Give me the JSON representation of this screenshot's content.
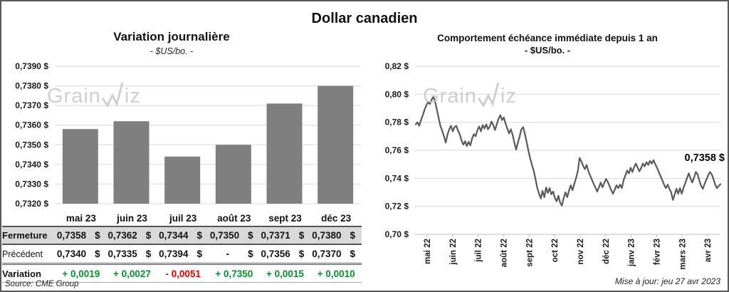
{
  "page": {
    "title": "Dollar canadien",
    "source": "Source: CME Group",
    "updated": "Mise à jour: jeu 27 avr 2023"
  },
  "watermark": {
    "part1": "Grain",
    "part2": "iz"
  },
  "colors": {
    "bar": "#7f7f7f",
    "line": "#595959",
    "grid": "#d9d9d9",
    "axis": "#bfbfbf",
    "text": "#1a1a1a",
    "positive": "#0a8f2d",
    "negative": "#e60000",
    "table_header_bg": "#d9d9d9"
  },
  "chart_data": [
    {
      "type": "bar",
      "title": "Variation  journalière",
      "subtitle": "- $US/bo. -",
      "categories": [
        "mai 23",
        "juin 23",
        "juil 23",
        "août 23",
        "sept 23",
        "déc 23"
      ],
      "values": [
        0.7358,
        0.7362,
        0.7344,
        0.735,
        0.7371,
        0.738
      ],
      "ylim": [
        0.732,
        0.739
      ],
      "ytick_step": 0.001,
      "ytick_labels": [
        "0,7390 $",
        "0,7380 $",
        "0,7370 $",
        "0,7360 $",
        "0,7350 $",
        "0,7340 $",
        "0,7330 $",
        "0,7320 $"
      ],
      "grid": true,
      "xlabel": "",
      "ylabel": ""
    },
    {
      "type": "line",
      "title": "Comportement échéance immédiate depuis 1 an",
      "subtitle": "- $US/bo. -",
      "x_tick_labels": [
        "mai 22",
        "juin 22",
        "juil 22",
        "août 22",
        "sept 22",
        "oct 22",
        "nov 22",
        "déc 22",
        "janv 23",
        "févr 23",
        "mars 23",
        "avr 23"
      ],
      "ylim": [
        0.7,
        0.82
      ],
      "ytick_step": 0.02,
      "ytick_labels": [
        "0,82 $",
        "0,80 $",
        "0,78 $",
        "0,76 $",
        "0,74 $",
        "0,72 $",
        "0,70 $"
      ],
      "grid": true,
      "annotation": "0,7358 $",
      "last_value": 0.7358,
      "values": [
        0.7785,
        0.78,
        0.7775,
        0.7815,
        0.785,
        0.789,
        0.792,
        0.7945,
        0.793,
        0.796,
        0.7985,
        0.7945,
        0.789,
        0.783,
        0.7775,
        0.774,
        0.77,
        0.7655,
        0.771,
        0.775,
        0.7775,
        0.7735,
        0.7765,
        0.7775,
        0.774,
        0.7715,
        0.767,
        0.764,
        0.7665,
        0.763,
        0.766,
        0.7635,
        0.7685,
        0.7715,
        0.77,
        0.7745,
        0.777,
        0.7735,
        0.778,
        0.7755,
        0.7785,
        0.775,
        0.777,
        0.7805,
        0.778,
        0.7745,
        0.7785,
        0.7825,
        0.785,
        0.7815,
        0.7835,
        0.779,
        0.7755,
        0.772,
        0.775,
        0.771,
        0.7655,
        0.7605,
        0.7655,
        0.77,
        0.775,
        0.7765,
        0.7715,
        0.7655,
        0.7595,
        0.754,
        0.7495,
        0.745,
        0.7395,
        0.733,
        0.729,
        0.7255,
        0.731,
        0.7265,
        0.7335,
        0.7295,
        0.733,
        0.7285,
        0.7305,
        0.726,
        0.7235,
        0.7275,
        0.7225,
        0.7205,
        0.726,
        0.73,
        0.7265,
        0.731,
        0.735,
        0.7315,
        0.736,
        0.74,
        0.745,
        0.7545,
        0.752,
        0.749,
        0.7465,
        0.7495,
        0.745,
        0.742,
        0.739,
        0.736,
        0.7335,
        0.7305,
        0.7335,
        0.737,
        0.7335,
        0.7365,
        0.7395,
        0.7375,
        0.7345,
        0.7315,
        0.729,
        0.732,
        0.735,
        0.733,
        0.7355,
        0.733,
        0.7385,
        0.742,
        0.7455,
        0.7435,
        0.7475,
        0.7445,
        0.748,
        0.7505,
        0.7475,
        0.745,
        0.7475,
        0.7505,
        0.7485,
        0.7515,
        0.7495,
        0.7525,
        0.7505,
        0.753,
        0.75,
        0.7475,
        0.7445,
        0.7415,
        0.7385,
        0.7355,
        0.733,
        0.7355,
        0.7325,
        0.73,
        0.7245,
        0.7285,
        0.7325,
        0.729,
        0.733,
        0.729,
        0.733,
        0.7365,
        0.74,
        0.7435,
        0.74,
        0.737,
        0.7405,
        0.7445,
        0.743,
        0.7385,
        0.7345,
        0.7325,
        0.736,
        0.739,
        0.742,
        0.7445,
        0.743,
        0.7395,
        0.7355,
        0.733,
        0.7345,
        0.7358
      ]
    }
  ],
  "table": {
    "columns": [
      "mai 23",
      "juin 23",
      "juil 23",
      "août 23",
      "sept 23",
      "déc 23"
    ],
    "currency": "$",
    "rows": [
      {
        "label": "Fermeture",
        "kind": "acc",
        "values": [
          "0,7358",
          "0,7362",
          "0,7344",
          "0,7350",
          "0,7371",
          "0,7380"
        ]
      },
      {
        "label": "Précédent",
        "kind": "acc",
        "values": [
          "0,7340",
          "0,7335",
          "0,7394",
          "-",
          "0,7356",
          "0,7370"
        ]
      },
      {
        "label": "Variation",
        "kind": "var",
        "values": [
          "+ 0,0019",
          "+ 0,0027",
          "- 0,0051",
          "+ 0,7350",
          "+ 0,0015",
          "+ 0,0010"
        ],
        "signs": [
          "pos",
          "pos",
          "neg",
          "pos",
          "pos",
          "pos"
        ]
      }
    ]
  }
}
